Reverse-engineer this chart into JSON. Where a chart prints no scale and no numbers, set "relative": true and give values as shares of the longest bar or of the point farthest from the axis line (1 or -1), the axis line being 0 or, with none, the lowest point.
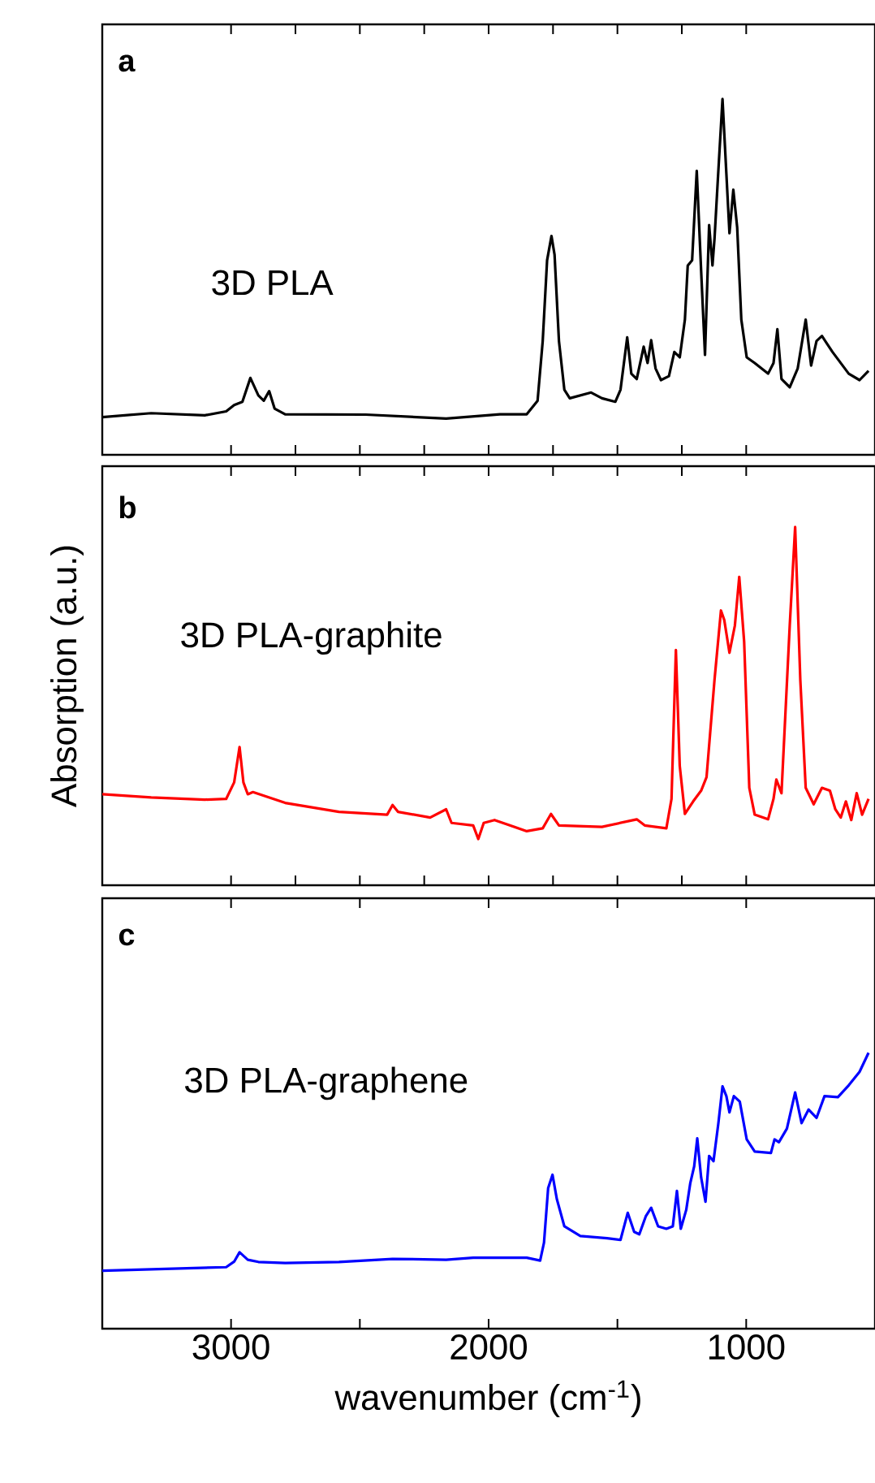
{
  "chart_data": [
    {
      "type": "line",
      "relative": true,
      "xlim": [
        3500,
        500
      ],
      "xticks": [
        3000,
        2000,
        1000
      ],
      "tick_labels": false,
      "annotations": [
        "a",
        "3D PLA"
      ],
      "series": [
        {
          "color": "#000000",
          "x": [
            3500,
            3310,
            3102,
            3019,
            2988,
            2956,
            2925,
            2894,
            2873,
            2852,
            2831,
            2790,
            2477,
            2165,
            1956,
            1852,
            1810,
            1790,
            1773,
            1756,
            1744,
            1727,
            1706,
            1685,
            1602,
            1560,
            1508,
            1488,
            1462,
            1446,
            1425,
            1398,
            1383,
            1369,
            1352,
            1331,
            1300,
            1279,
            1258,
            1238,
            1227,
            1210,
            1192,
            1175,
            1160,
            1144,
            1131,
            1123,
            1110,
            1092,
            1077,
            1065,
            1050,
            1035,
            1019,
            998,
            967,
            915,
            894,
            879,
            863,
            831,
            800,
            769,
            748,
            727,
            706,
            665,
            602,
            560,
            525
          ],
          "values": [
            0.106,
            0.117,
            0.111,
            0.122,
            0.14,
            0.149,
            0.216,
            0.167,
            0.152,
            0.179,
            0.13,
            0.114,
            0.113,
            0.102,
            0.114,
            0.114,
            0.152,
            0.32,
            0.547,
            0.615,
            0.562,
            0.32,
            0.183,
            0.159,
            0.175,
            0.159,
            0.149,
            0.183,
            0.33,
            0.228,
            0.213,
            0.304,
            0.258,
            0.322,
            0.243,
            0.21,
            0.221,
            0.289,
            0.274,
            0.38,
            0.532,
            0.547,
            0.798,
            0.517,
            0.281,
            0.646,
            0.532,
            0.608,
            0.775,
            1.0,
            0.79,
            0.623,
            0.745,
            0.639,
            0.38,
            0.274,
            0.258,
            0.228,
            0.258,
            0.353,
            0.213,
            0.19,
            0.243,
            0.38,
            0.251,
            0.32,
            0.334,
            0.289,
            0.228,
            0.21,
            0.236
          ]
        }
      ]
    },
    {
      "type": "line",
      "relative": true,
      "xlim": [
        3500,
        500
      ],
      "xticks": [
        3000,
        2000,
        1000
      ],
      "tick_labels": false,
      "ylabel": "Absorption (a.u.)",
      "annotations": [
        "b",
        "3D PLA-graphite"
      ],
      "series": [
        {
          "color": "#ff0000",
          "x": [
            3500,
            3310,
            3102,
            3019,
            2988,
            2967,
            2952,
            2935,
            2915,
            2790,
            2581,
            2394,
            2373,
            2352,
            2227,
            2165,
            2144,
            2060,
            2040,
            2019,
            1977,
            1852,
            1790,
            1758,
            1727,
            1560,
            1425,
            1394,
            1310,
            1290,
            1273,
            1258,
            1238,
            1206,
            1175,
            1154,
            1123,
            1098,
            1085,
            1065,
            1044,
            1027,
            1008,
            988,
            967,
            915,
            894,
            883,
            863,
            831,
            810,
            790,
            769,
            738,
            706,
            675,
            654,
            633,
            613,
            592,
            571,
            550,
            525
          ],
          "values": [
            0.254,
            0.245,
            0.239,
            0.241,
            0.287,
            0.386,
            0.287,
            0.254,
            0.26,
            0.23,
            0.205,
            0.197,
            0.224,
            0.205,
            0.189,
            0.212,
            0.174,
            0.167,
            0.129,
            0.174,
            0.182,
            0.151,
            0.159,
            0.199,
            0.167,
            0.163,
            0.184,
            0.167,
            0.159,
            0.241,
            0.657,
            0.333,
            0.199,
            0.234,
            0.264,
            0.302,
            0.574,
            0.767,
            0.74,
            0.649,
            0.725,
            0.861,
            0.68,
            0.272,
            0.197,
            0.184,
            0.241,
            0.295,
            0.257,
            0.725,
            1.0,
            0.574,
            0.272,
            0.226,
            0.272,
            0.264,
            0.212,
            0.189,
            0.234,
            0.182,
            0.257,
            0.197,
            0.241
          ]
        }
      ]
    },
    {
      "type": "line",
      "relative": true,
      "xlim": [
        3500,
        500
      ],
      "xticks": [
        3000,
        2000,
        1000
      ],
      "tick_labels": "x",
      "xlabel": "wavenumber (cm$^{-1}$)",
      "annotations": [
        "c",
        "3D PLA-graphene"
      ],
      "series": [
        {
          "color": "#0000ff",
          "x": [
            3500,
            3019,
            2988,
            2967,
            2935,
            2894,
            2790,
            2581,
            2373,
            2165,
            2060,
            1852,
            1800,
            1785,
            1769,
            1752,
            1735,
            1706,
            1644,
            1540,
            1488,
            1460,
            1435,
            1415,
            1390,
            1369,
            1342,
            1310,
            1285,
            1269,
            1254,
            1233,
            1217,
            1202,
            1190,
            1175,
            1158,
            1144,
            1127,
            1108,
            1092,
            1077,
            1065,
            1048,
            1025,
            998,
            967,
            904,
            890,
            873,
            842,
            810,
            785,
            758,
            727,
            696,
            644,
            602,
            560,
            525
          ],
          "values": [
            0.21,
            0.223,
            0.243,
            0.277,
            0.25,
            0.242,
            0.238,
            0.242,
            0.253,
            0.25,
            0.257,
            0.257,
            0.247,
            0.312,
            0.509,
            0.558,
            0.469,
            0.371,
            0.336,
            0.328,
            0.322,
            0.42,
            0.351,
            0.342,
            0.407,
            0.438,
            0.371,
            0.362,
            0.371,
            0.499,
            0.362,
            0.43,
            0.528,
            0.588,
            0.69,
            0.548,
            0.46,
            0.626,
            0.607,
            0.745,
            0.878,
            0.843,
            0.784,
            0.843,
            0.823,
            0.686,
            0.642,
            0.637,
            0.686,
            0.676,
            0.725,
            0.856,
            0.745,
            0.794,
            0.764,
            0.843,
            0.839,
            0.882,
            0.931,
            1.0
          ]
        }
      ]
    }
  ]
}
